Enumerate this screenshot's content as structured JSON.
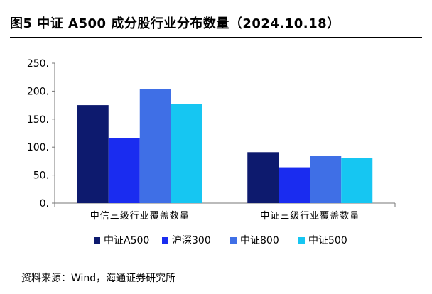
{
  "title": "图5  中证 A500 成分股行业分布数量（2024.10.18）",
  "source": "资料来源：Wind，海通证券研究所",
  "chart_data": {
    "type": "bar",
    "categories": [
      "中信三级行业覆盖数量",
      "中证三级行业覆盖数量"
    ],
    "series": [
      {
        "name": "中证A500",
        "color": "#0d1a6e",
        "values": [
          175,
          91
        ]
      },
      {
        "name": "沪深300",
        "color": "#1a2cf0",
        "values": [
          116,
          64
        ]
      },
      {
        "name": "中证800",
        "color": "#3f6fe6",
        "values": [
          204,
          85
        ]
      },
      {
        "name": "中证500",
        "color": "#16c6f2",
        "values": [
          177,
          80
        ]
      }
    ],
    "yticks": [
      "0.",
      "50.",
      "100.",
      "150.",
      "200.",
      "250."
    ],
    "ylim": [
      0,
      250
    ],
    "grid": false,
    "legend_position": "bottom"
  }
}
